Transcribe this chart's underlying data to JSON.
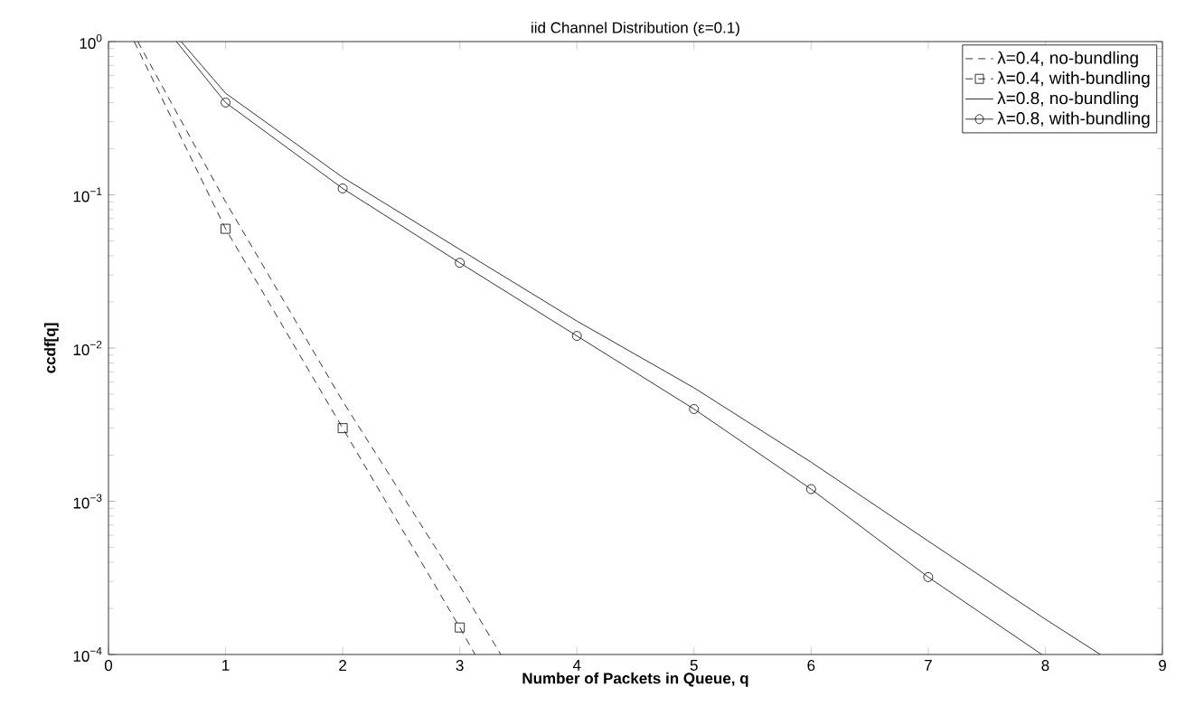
{
  "chart_data": {
    "type": "line",
    "title": "iid Channel Distribution (ε=0.1)",
    "xlabel": "Number of Packets in Queue, q",
    "ylabel": "ccdf[q]",
    "log": "y",
    "xlim": [
      0,
      9
    ],
    "ylim": [
      0.0001,
      1
    ],
    "xticks": [
      0,
      1,
      2,
      3,
      4,
      5,
      6,
      7,
      8,
      9
    ],
    "yticks": [
      {
        "value": 0.0001,
        "label": "10$^{−4}$"
      },
      {
        "value": 0.001,
        "label": "10$^{−3}$"
      },
      {
        "value": 0.01,
        "label": "10$^{−2}$"
      },
      {
        "value": 0.1,
        "label": "10$^{−1}$"
      },
      {
        "value": 1,
        "label": "10$^{0}$"
      }
    ],
    "grid": false,
    "legend": "top right",
    "series": [
      {
        "name": "λ=0.4, no-bundling",
        "color": "#000000",
        "line_style": "dashed",
        "marker": "none",
        "x": [
          0.25,
          1,
          2,
          3,
          3.35
        ],
        "values": [
          1,
          0.09,
          0.0045,
          0.00028,
          0.0001
        ]
      },
      {
        "name": "λ=0.4, with-bundling",
        "color": "#000000",
        "line_style": "dashed",
        "marker": "square",
        "x": [
          0.22,
          1,
          2,
          3,
          3.13
        ],
        "values": [
          1,
          0.06,
          0.003,
          0.00015,
          0.0001
        ]
      },
      {
        "name": "λ=0.8, no-bundling",
        "color": "#000000",
        "line_style": "solid",
        "marker": "none",
        "x": [
          0.62,
          1,
          2,
          3,
          4,
          5,
          6,
          7,
          8,
          8.47
        ],
        "values": [
          1,
          0.46,
          0.13,
          0.044,
          0.015,
          0.0055,
          0.0018,
          0.00055,
          0.00017,
          0.0001
        ]
      },
      {
        "name": "λ=0.8, with-bundling",
        "color": "#000000",
        "line_style": "solid",
        "marker": "circle",
        "x": [
          0.58,
          1,
          2,
          3,
          4,
          5,
          6,
          7,
          7.97
        ],
        "values": [
          1,
          0.4,
          0.11,
          0.036,
          0.012,
          0.004,
          0.0012,
          0.00032,
          0.0001
        ]
      }
    ]
  }
}
